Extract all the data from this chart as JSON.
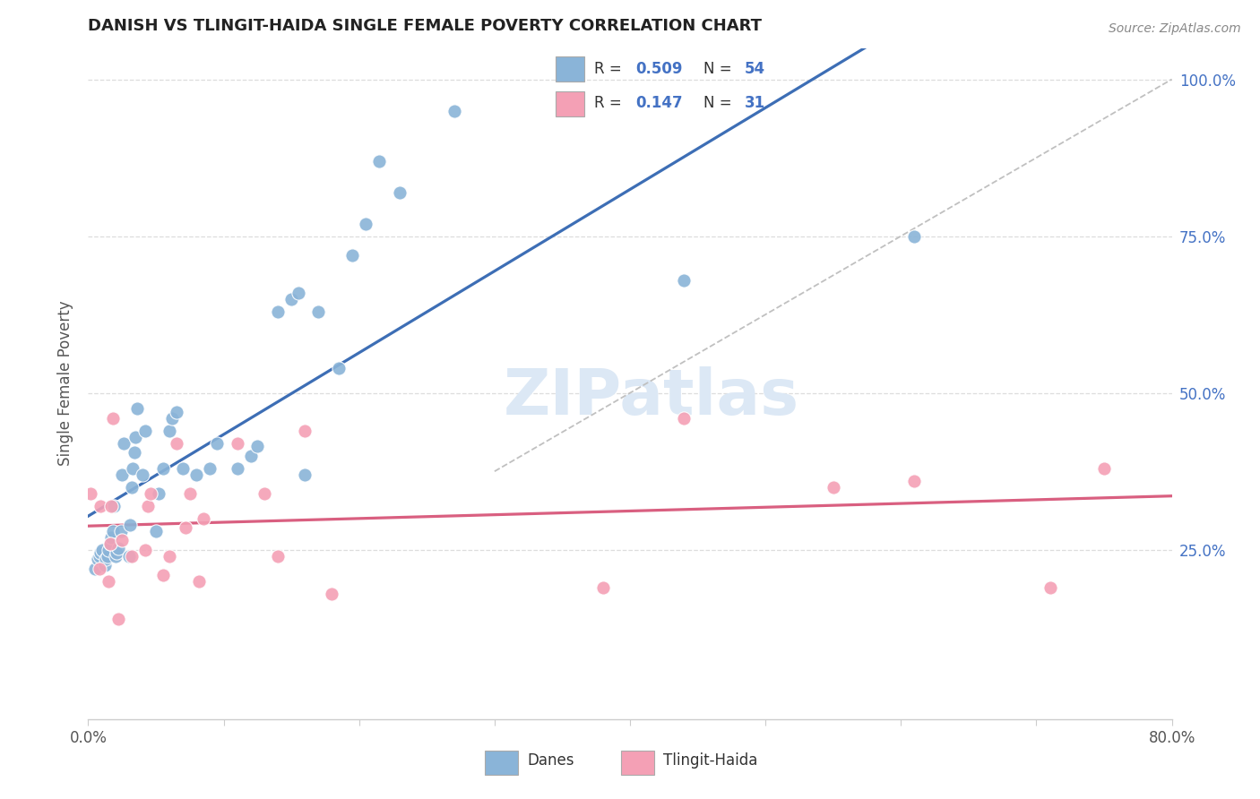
{
  "title": "DANISH VS TLINGIT-HAIDA SINGLE FEMALE POVERTY CORRELATION CHART",
  "source": "Source: ZipAtlas.com",
  "ylabel": "Single Female Poverty",
  "xlim": [
    0.0,
    0.8
  ],
  "ylim": [
    -0.02,
    1.05
  ],
  "ytick_positions": [
    0.25,
    0.5,
    0.75,
    1.0
  ],
  "ytick_labels": [
    "25.0%",
    "50.0%",
    "75.0%",
    "100.0%"
  ],
  "xtick_positions": [
    0.0,
    0.1,
    0.2,
    0.3,
    0.4,
    0.5,
    0.6,
    0.7,
    0.8
  ],
  "xtick_labels": [
    "0.0%",
    "",
    "",
    "",
    "",
    "",
    "",
    "",
    "80.0%"
  ],
  "danish_R": 0.509,
  "danish_N": 54,
  "tlingit_R": 0.147,
  "tlingit_N": 31,
  "danish_color": "#8ab4d8",
  "tlingit_color": "#f4a0b5",
  "regression_danish": "#3d6eb5",
  "regression_tlingit": "#d95f80",
  "diagonal_color": "#c0c0c0",
  "axis_color": "#cccccc",
  "grid_color": "#dddddd",
  "right_tick_color": "#4472c4",
  "title_color": "#222222",
  "source_color": "#888888",
  "ylabel_color": "#555555",
  "watermark_color": "#dce8f5",
  "danish_x": [
    0.005,
    0.007,
    0.008,
    0.009,
    0.01,
    0.012,
    0.013,
    0.014,
    0.015,
    0.016,
    0.017,
    0.018,
    0.019,
    0.02,
    0.021,
    0.022,
    0.024,
    0.025,
    0.026,
    0.03,
    0.031,
    0.032,
    0.033,
    0.034,
    0.035,
    0.036,
    0.04,
    0.042,
    0.05,
    0.052,
    0.055,
    0.06,
    0.062,
    0.065,
    0.07,
    0.08,
    0.09,
    0.095,
    0.11,
    0.12,
    0.125,
    0.14,
    0.15,
    0.155,
    0.16,
    0.17,
    0.185,
    0.195,
    0.205,
    0.215,
    0.23,
    0.27,
    0.44,
    0.61
  ],
  "danish_y": [
    0.22,
    0.235,
    0.24,
    0.245,
    0.25,
    0.225,
    0.235,
    0.24,
    0.25,
    0.26,
    0.27,
    0.28,
    0.32,
    0.24,
    0.245,
    0.252,
    0.28,
    0.37,
    0.42,
    0.24,
    0.29,
    0.35,
    0.38,
    0.405,
    0.43,
    0.475,
    0.37,
    0.44,
    0.28,
    0.34,
    0.38,
    0.44,
    0.46,
    0.47,
    0.38,
    0.37,
    0.38,
    0.42,
    0.38,
    0.4,
    0.415,
    0.63,
    0.65,
    0.66,
    0.37,
    0.63,
    0.54,
    0.72,
    0.77,
    0.87,
    0.82,
    0.95,
    0.68,
    0.75
  ],
  "tlingit_x": [
    0.002,
    0.008,
    0.009,
    0.015,
    0.016,
    0.017,
    0.018,
    0.022,
    0.025,
    0.032,
    0.042,
    0.044,
    0.046,
    0.055,
    0.06,
    0.065,
    0.072,
    0.075,
    0.082,
    0.085,
    0.11,
    0.13,
    0.14,
    0.16,
    0.18,
    0.38,
    0.44,
    0.55,
    0.61,
    0.71,
    0.75
  ],
  "tlingit_y": [
    0.34,
    0.22,
    0.32,
    0.2,
    0.26,
    0.32,
    0.46,
    0.14,
    0.265,
    0.24,
    0.25,
    0.32,
    0.34,
    0.21,
    0.24,
    0.42,
    0.285,
    0.34,
    0.2,
    0.3,
    0.42,
    0.34,
    0.24,
    0.44,
    0.18,
    0.19,
    0.46,
    0.35,
    0.36,
    0.19,
    0.38
  ]
}
